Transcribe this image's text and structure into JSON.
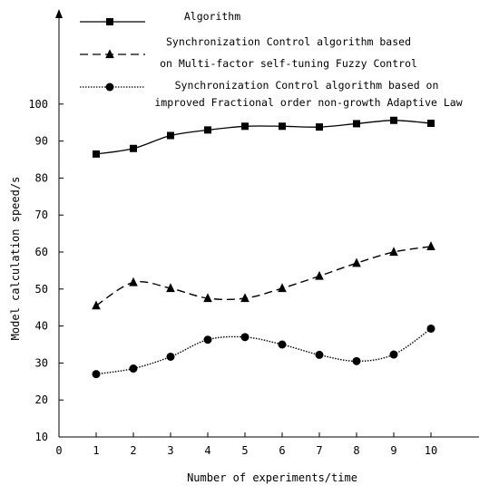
{
  "chart_data": {
    "type": "line",
    "xlabel": "Number of experiments/time",
    "ylabel": "Model calculation speed/s",
    "xlim": [
      0,
      11
    ],
    "ylim": [
      10,
      110
    ],
    "x_ticks": [
      "0",
      "1",
      "2",
      "3",
      "4",
      "5",
      "6",
      "7",
      "8",
      "9",
      "10"
    ],
    "y_ticks": [
      "10",
      "20",
      "30",
      "40",
      "50",
      "60",
      "70",
      "80",
      "90",
      "100"
    ],
    "grid": false,
    "legend_position": "top",
    "x": [
      1,
      2,
      3,
      4,
      5,
      6,
      7,
      8,
      9,
      10
    ],
    "series": [
      {
        "name_lines": [
          "Algorithm"
        ],
        "marker": "square",
        "line_style": "solid",
        "color": "#000000",
        "values": [
          86.5,
          88,
          91.5,
          93,
          94,
          94,
          93.8,
          94.7,
          95.6,
          94.8
        ]
      },
      {
        "name_lines": [
          "Synchronization Control algorithm based",
          "on Multi-factor self-tuning Fuzzy Control"
        ],
        "marker": "triangle",
        "line_style": "dashed",
        "color": "#000000",
        "values": [
          45.5,
          51.8,
          50.2,
          47.5,
          47.5,
          50.2,
          53.5,
          57,
          60,
          61.5
        ]
      },
      {
        "name_lines": [
          "Synchronization Control algorithm based on",
          "improved Fractional order non-growth Adaptive Law"
        ],
        "marker": "circle",
        "line_style": "dotted",
        "color": "#000000",
        "values": [
          27,
          28.5,
          31.7,
          36.3,
          37,
          35,
          32.2,
          30.5,
          32.3,
          39.3
        ]
      }
    ]
  }
}
